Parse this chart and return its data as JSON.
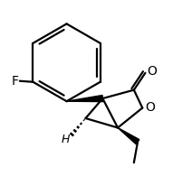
{
  "bg_color": "#ffffff",
  "line_color": "#000000",
  "lw": 1.6,
  "figsize": [
    2.12,
    2.16
  ],
  "dpi": 100,
  "F_label": "F",
  "O_carbonyl_label": "O",
  "O_ring_label": "O",
  "H_label": "H"
}
